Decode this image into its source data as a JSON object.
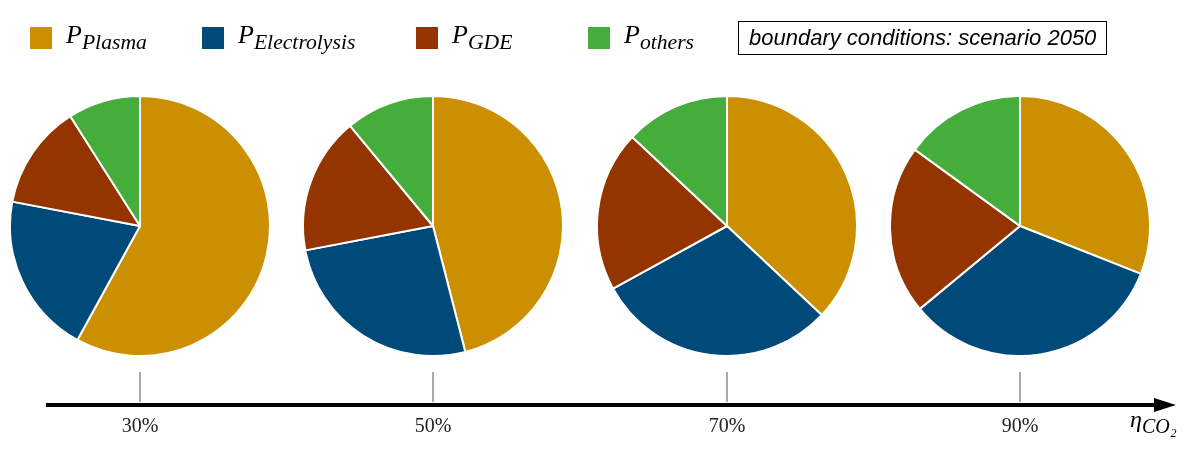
{
  "chart_data": [
    {
      "type": "pie",
      "title": "30%",
      "categories": [
        "P$_{Plasma}$",
        "P$_{Electrolysis}$",
        "P$_{GDE}$",
        "P$_{others}$"
      ],
      "values": [
        58,
        20,
        13,
        9
      ],
      "colors": [
        "#cc8f00",
        "#004a7a",
        "#943500",
        "#45ad3c"
      ],
      "legend": "top",
      "annotations": [
        "boundary conditions: scenario 2050"
      ]
    },
    {
      "type": "pie",
      "title": "50%",
      "categories": [
        null,
        null,
        null,
        null
      ],
      "values": [
        46,
        26,
        17,
        11
      ],
      "colors": [
        "#cc8f00",
        "#004a7a",
        "#943500",
        "#45ad3c"
      ]
    },
    {
      "type": "pie",
      "title": "70%",
      "categories": [
        null,
        null,
        null,
        null
      ],
      "values": [
        37,
        30,
        20,
        13
      ],
      "colors": [
        "#cc8f00",
        "#004a7a",
        "#943500",
        "#45ad3c"
      ]
    },
    {
      "type": "pie",
      "title": "90%",
      "categories": [
        null,
        null,
        null,
        null
      ],
      "values": [
        31,
        33,
        21,
        15
      ],
      "colors": [
        "#cc8f00",
        "#004a7a",
        "#943500",
        "#45ad3c"
      ],
      "xlabel": "η$_{CO₂}$"
    }
  ]
}
